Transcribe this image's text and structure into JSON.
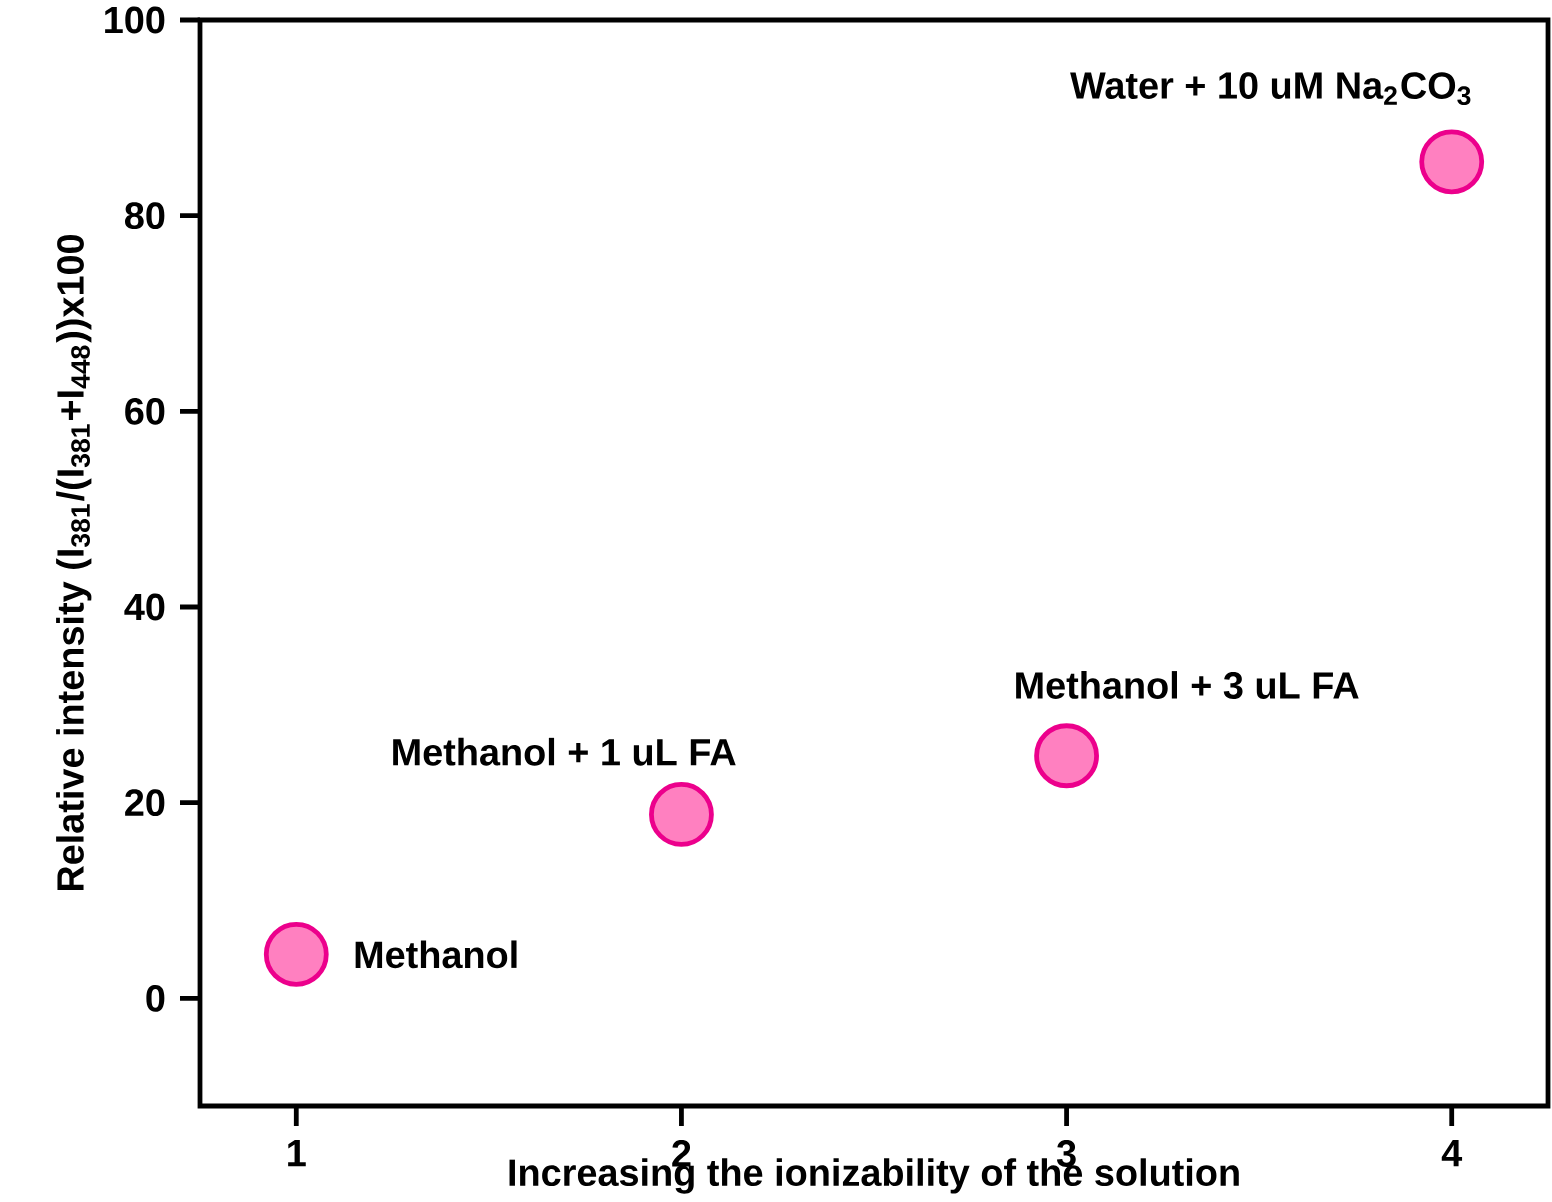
{
  "chart_data": {
    "type": "scatter",
    "xlabel": "Increasing the ionizability of the solution",
    "ylabel": "Relative intensity (I$_{381}$/(I$_{381}$+I$_{448}$))x100",
    "x": [
      1,
      2,
      3,
      4
    ],
    "series": [
      {
        "color": "#ff80c0",
        "values": [
          4.5,
          18.8,
          24.8,
          85.5
        ]
      }
    ],
    "xlim": [
      0.75,
      4.25
    ],
    "ylim": [
      -11,
      100
    ],
    "xticks": [
      1,
      2,
      3,
      4
    ],
    "yticks": [
      0,
      20,
      40,
      60,
      80,
      100
    ],
    "grid": false,
    "annotations": [
      {
        "text": "Methanol",
        "x": 1,
        "y": 4.5
      },
      {
        "text": "Methanol + 1 uL FA",
        "x": 2,
        "y": 18.8
      },
      {
        "text": "Methanol + 3 uL FA",
        "x": 3,
        "y": 24.8
      },
      {
        "text": "Water + 10 uM Na$_{2}$CO$_{3}$",
        "x": 4,
        "y": 85.5
      }
    ]
  }
}
